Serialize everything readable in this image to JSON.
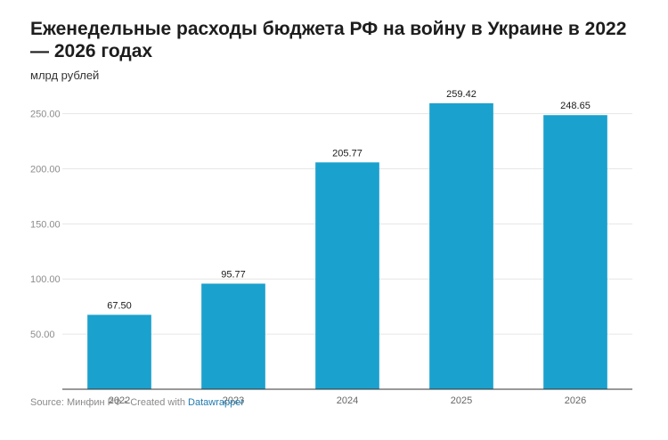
{
  "title": "Еженедельные расходы бюджета РФ на войну в Украине в 2022 — 2026 годах",
  "subtitle": "млрд рублей",
  "footer": {
    "source": "Source: Минфин РФ • Created with ",
    "tool": "Datawrapper"
  },
  "colors": {
    "bar": "#1ba1cd",
    "grid": "#e6e6e6",
    "axis": "#333333",
    "tick_label": "#8c8c8c"
  },
  "chart_data": {
    "type": "bar",
    "title": "Еженедельные расходы бюджета РФ на войну в Украине в 2022 — 2026 годах",
    "ylabel": "млрд рублей",
    "categories": [
      "2022",
      "2023",
      "2024",
      "2025",
      "2026"
    ],
    "values": [
      67.5,
      95.77,
      205.77,
      259.42,
      248.65
    ],
    "value_labels": [
      "67.50",
      "95.77",
      "205.77",
      "259.42",
      "248.65"
    ],
    "yticks": [
      50,
      100,
      150,
      200,
      250
    ],
    "ytick_labels": [
      "50.00",
      "100.00",
      "150.00",
      "200.00",
      "250.00"
    ],
    "ylim": [
      0,
      265
    ],
    "grid": true,
    "legend": "none"
  }
}
